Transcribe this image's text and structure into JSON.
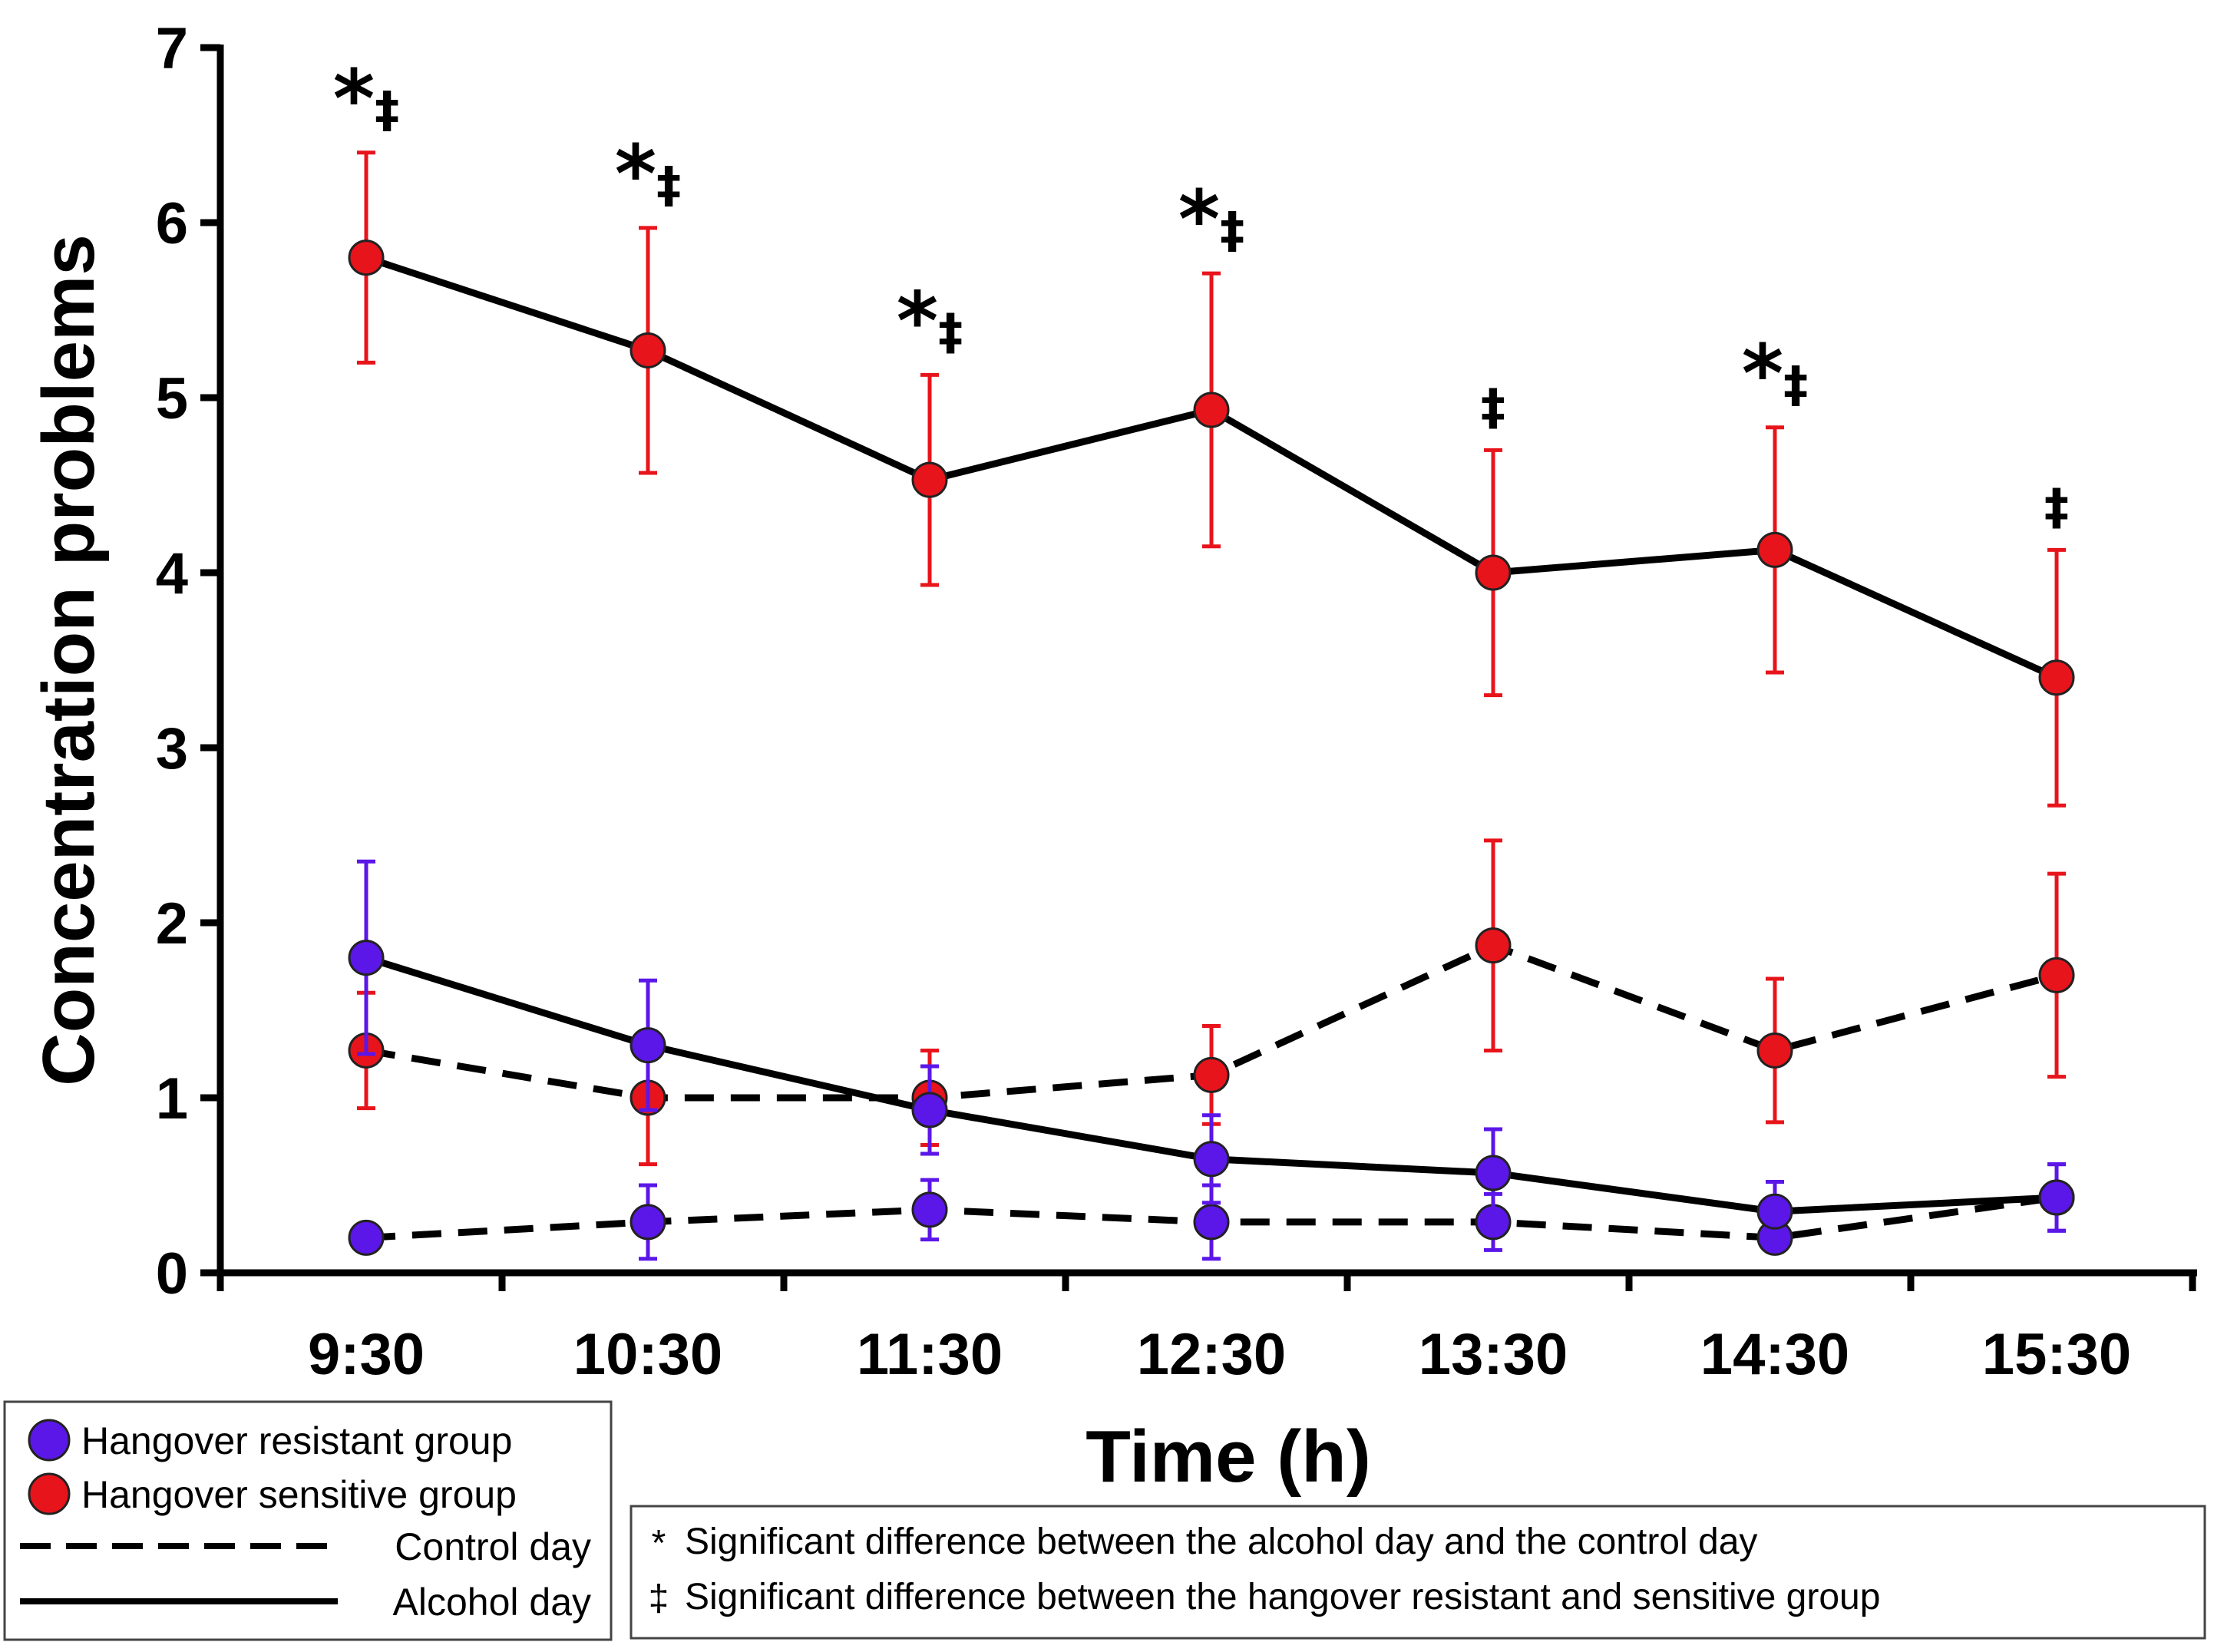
{
  "chart_data": {
    "type": "line",
    "title": "",
    "xlabel": "Time (h)",
    "ylabel": "Concentration problems",
    "categories": [
      "9:30",
      "10:30",
      "11:30",
      "12:30",
      "13:30",
      "14:30",
      "15:30"
    ],
    "ylim": [
      0,
      7
    ],
    "yticks": [
      "0",
      "1",
      "2",
      "3",
      "4",
      "5",
      "6",
      "7"
    ],
    "series": [
      {
        "name": "Hangover sensitive group - Alcohol day",
        "group": "sensitive",
        "day": "alcohol",
        "color": "#e8141b",
        "line": "solid",
        "values": [
          5.8,
          5.27,
          4.53,
          4.93,
          4.0,
          4.13,
          3.4
        ],
        "errors": [
          0.6,
          0.7,
          0.6,
          0.78,
          0.7,
          0.7,
          0.73
        ]
      },
      {
        "name": "Hangover sensitive group - Control day",
        "group": "sensitive",
        "day": "control",
        "color": "#e8141b",
        "line": "dashed",
        "values": [
          1.27,
          1.0,
          1.0,
          1.13,
          1.87,
          1.27,
          1.7
        ],
        "errors": [
          0.33,
          0.38,
          0.27,
          0.28,
          0.6,
          0.41,
          0.58
        ]
      },
      {
        "name": "Hangover resistant group - Alcohol day",
        "group": "resistant",
        "day": "alcohol",
        "color": "#5b16e8",
        "line": "solid",
        "values": [
          1.8,
          1.3,
          0.93,
          0.65,
          0.57,
          0.35,
          0.43
        ],
        "errors": [
          0.55,
          0.37,
          0.25,
          0.25,
          0.25,
          0.17,
          0.19
        ]
      },
      {
        "name": "Hangover resistant group - Control day",
        "group": "resistant",
        "day": "control",
        "color": "#5b16e8",
        "line": "dashed",
        "values": [
          0.2,
          0.29,
          0.36,
          0.29,
          0.29,
          0.2,
          0.43
        ],
        "errors": [
          0.05,
          0.21,
          0.17,
          0.21,
          0.16,
          0.08,
          0.19
        ]
      }
    ],
    "significance": [
      {
        "category": "9:30",
        "label": "*‡"
      },
      {
        "category": "10:30",
        "label": "*‡"
      },
      {
        "category": "11:30",
        "label": "*‡"
      },
      {
        "category": "12:30",
        "label": "*‡"
      },
      {
        "category": "13:30",
        "label": "‡"
      },
      {
        "category": "14:30",
        "label": "*‡"
      },
      {
        "category": "15:30",
        "label": "‡"
      }
    ],
    "legend": {
      "placement": "bottom-left",
      "groups": [
        {
          "label": "Hangover resistant group",
          "color": "#5b16e8"
        },
        {
          "label": "Hangover sensitive group",
          "color": "#e8141b"
        }
      ],
      "lines": [
        {
          "label": "Control day",
          "style": "dashed"
        },
        {
          "label": "Alcohol day",
          "style": "solid"
        }
      ]
    },
    "notes": {
      "placement": "bottom-right",
      "items": [
        {
          "symbol": "*",
          "text": "Significant difference between the alcohol day and the control day"
        },
        {
          "symbol": "‡",
          "text": "Significant difference between the hangover resistant and sensitive group"
        }
      ]
    }
  }
}
